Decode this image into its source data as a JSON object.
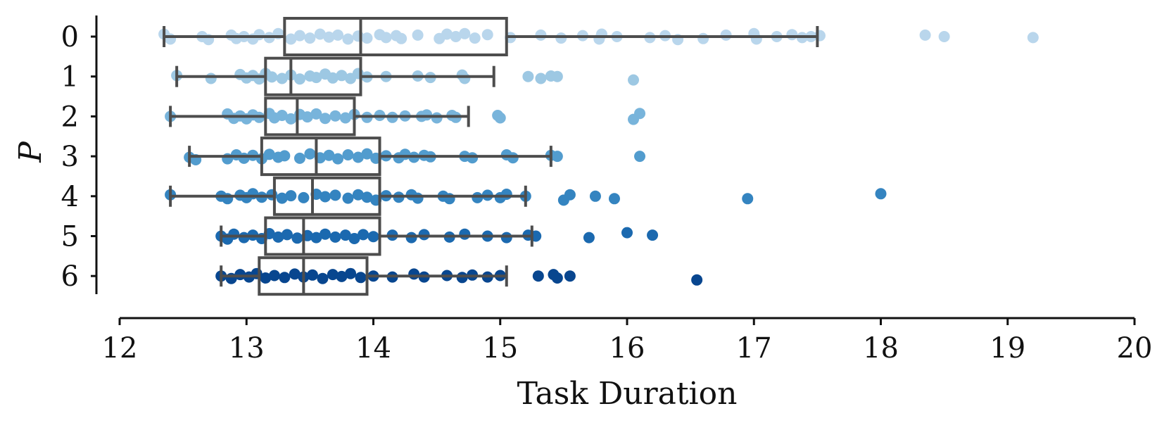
{
  "chart_data": {
    "type": "box-strip",
    "xlabel": "Task Duration",
    "ylabel": "P",
    "xlim": [
      12,
      20
    ],
    "xticks": [
      12,
      13,
      14,
      15,
      16,
      17,
      18,
      19,
      20
    ],
    "xtick_labels": [
      "12",
      "13",
      "14",
      "15",
      "16",
      "17",
      "18",
      "19",
      "20"
    ],
    "grid": false,
    "categories": [
      "0",
      "1",
      "2",
      "3",
      "4",
      "5",
      "6"
    ],
    "series": [
      {
        "category": "0",
        "color": "#b9d6ec",
        "box": {
          "q1": 13.3,
          "median": 13.9,
          "q3": 15.05,
          "whisker_low": 12.35,
          "whisker_high": 17.5
        },
        "points": [
          {
            "x": 12.35,
            "j": -0.05
          },
          {
            "x": 12.4,
            "j": 0.05
          },
          {
            "x": 12.65,
            "j": 0.0
          },
          {
            "x": 12.7,
            "j": 0.06
          },
          {
            "x": 12.88,
            "j": -0.03
          },
          {
            "x": 12.92,
            "j": 0.04
          },
          {
            "x": 12.98,
            "j": 0.0
          },
          {
            "x": 13.05,
            "j": 0.05
          },
          {
            "x": 13.1,
            "j": -0.04
          },
          {
            "x": 13.18,
            "j": 0.02
          },
          {
            "x": 13.25,
            "j": -0.06
          },
          {
            "x": 13.35,
            "j": 0.05
          },
          {
            "x": 13.42,
            "j": -0.02
          },
          {
            "x": 13.5,
            "j": 0.03
          },
          {
            "x": 13.58,
            "j": -0.05
          },
          {
            "x": 13.65,
            "j": 0.01
          },
          {
            "x": 13.72,
            "j": -0.03
          },
          {
            "x": 13.8,
            "j": 0.05
          },
          {
            "x": 13.88,
            "j": -0.01
          },
          {
            "x": 13.95,
            "j": 0.03
          },
          {
            "x": 14.05,
            "j": -0.04
          },
          {
            "x": 14.1,
            "j": 0.02
          },
          {
            "x": 14.18,
            "j": -0.02
          },
          {
            "x": 14.22,
            "j": 0.04
          },
          {
            "x": 14.35,
            "j": -0.03
          },
          {
            "x": 14.52,
            "j": 0.04
          },
          {
            "x": 14.58,
            "j": -0.05
          },
          {
            "x": 14.65,
            "j": 0.0
          },
          {
            "x": 14.72,
            "j": -0.06
          },
          {
            "x": 14.8,
            "j": 0.03
          },
          {
            "x": 14.9,
            "j": -0.04
          },
          {
            "x": 15.08,
            "j": 0.02
          },
          {
            "x": 15.32,
            "j": -0.03
          },
          {
            "x": 15.48,
            "j": 0.03
          },
          {
            "x": 15.65,
            "j": -0.02
          },
          {
            "x": 15.78,
            "j": 0.05
          },
          {
            "x": 15.8,
            "j": -0.05
          },
          {
            "x": 15.92,
            "j": 0.0
          },
          {
            "x": 16.18,
            "j": 0.02
          },
          {
            "x": 16.3,
            "j": -0.02
          },
          {
            "x": 16.4,
            "j": 0.06
          },
          {
            "x": 16.6,
            "j": 0.04
          },
          {
            "x": 16.78,
            "j": -0.03
          },
          {
            "x": 17.0,
            "j": -0.06
          },
          {
            "x": 17.02,
            "j": 0.05
          },
          {
            "x": 17.18,
            "j": 0.0
          },
          {
            "x": 17.3,
            "j": -0.04
          },
          {
            "x": 17.38,
            "j": 0.02
          },
          {
            "x": 17.45,
            "j": 0.0
          },
          {
            "x": 17.52,
            "j": -0.02
          },
          {
            "x": 18.35,
            "j": -0.03
          },
          {
            "x": 18.5,
            "j": 0.0
          },
          {
            "x": 19.2,
            "j": 0.02
          }
        ]
      },
      {
        "category": "1",
        "color": "#9dc8e3",
        "box": {
          "q1": 13.15,
          "median": 13.35,
          "q3": 13.9,
          "whisker_low": 12.45,
          "whisker_high": 14.95
        },
        "points": [
          {
            "x": 12.45,
            "j": -0.02
          },
          {
            "x": 12.72,
            "j": 0.04
          },
          {
            "x": 12.95,
            "j": -0.04
          },
          {
            "x": 13.0,
            "j": 0.03
          },
          {
            "x": 13.05,
            "j": -0.02
          },
          {
            "x": 13.1,
            "j": 0.05
          },
          {
            "x": 13.15,
            "j": -0.06
          },
          {
            "x": 13.2,
            "j": 0.01
          },
          {
            "x": 13.28,
            "j": 0.04
          },
          {
            "x": 13.35,
            "j": -0.03
          },
          {
            "x": 13.42,
            "j": 0.05
          },
          {
            "x": 13.5,
            "j": -0.01
          },
          {
            "x": 13.55,
            "j": 0.02
          },
          {
            "x": 13.62,
            "j": -0.05
          },
          {
            "x": 13.68,
            "j": 0.03
          },
          {
            "x": 13.75,
            "j": -0.02
          },
          {
            "x": 13.82,
            "j": 0.04
          },
          {
            "x": 13.88,
            "j": -0.06
          },
          {
            "x": 13.95,
            "j": 0.01
          },
          {
            "x": 14.1,
            "j": 0.0
          },
          {
            "x": 14.35,
            "j": -0.01
          },
          {
            "x": 14.45,
            "j": 0.02
          },
          {
            "x": 14.7,
            "j": -0.03
          },
          {
            "x": 14.72,
            "j": 0.04
          },
          {
            "x": 15.22,
            "j": 0.0
          },
          {
            "x": 15.32,
            "j": 0.04
          },
          {
            "x": 15.4,
            "j": -0.01
          },
          {
            "x": 15.45,
            "j": 0.0
          },
          {
            "x": 16.05,
            "j": 0.07
          }
        ]
      },
      {
        "category": "2",
        "color": "#78b4db",
        "box": {
          "q1": 13.15,
          "median": 13.4,
          "q3": 13.85,
          "whisker_low": 12.4,
          "whisker_high": 14.75
        },
        "points": [
          {
            "x": 12.4,
            "j": 0.0
          },
          {
            "x": 12.85,
            "j": -0.05
          },
          {
            "x": 12.9,
            "j": 0.04
          },
          {
            "x": 12.95,
            "j": -0.01
          },
          {
            "x": 13.0,
            "j": 0.05
          },
          {
            "x": 13.05,
            "j": -0.03
          },
          {
            "x": 13.1,
            "j": 0.02
          },
          {
            "x": 13.18,
            "j": -0.06
          },
          {
            "x": 13.22,
            "j": 0.03
          },
          {
            "x": 13.28,
            "j": -0.02
          },
          {
            "x": 13.35,
            "j": 0.05
          },
          {
            "x": 13.42,
            "j": -0.04
          },
          {
            "x": 13.48,
            "j": 0.01
          },
          {
            "x": 13.55,
            "j": -0.05
          },
          {
            "x": 13.62,
            "j": 0.04
          },
          {
            "x": 13.7,
            "j": -0.01
          },
          {
            "x": 13.78,
            "j": 0.03
          },
          {
            "x": 13.85,
            "j": -0.04
          },
          {
            "x": 13.95,
            "j": 0.02
          },
          {
            "x": 14.05,
            "j": -0.02
          },
          {
            "x": 14.15,
            "j": 0.02
          },
          {
            "x": 14.25,
            "j": -0.01
          },
          {
            "x": 14.38,
            "j": 0.0
          },
          {
            "x": 14.42,
            "j": -0.03
          },
          {
            "x": 14.5,
            "j": 0.03
          },
          {
            "x": 14.62,
            "j": -0.02
          },
          {
            "x": 14.65,
            "j": 0.02
          },
          {
            "x": 14.98,
            "j": -0.02
          },
          {
            "x": 15.0,
            "j": 0.03
          },
          {
            "x": 16.05,
            "j": 0.06
          },
          {
            "x": 16.1,
            "j": -0.06
          }
        ]
      },
      {
        "category": "3",
        "color": "#529cce",
        "box": {
          "q1": 13.12,
          "median": 13.55,
          "q3": 14.05,
          "whisker_low": 12.55,
          "whisker_high": 15.4
        },
        "points": [
          {
            "x": 12.55,
            "j": 0.02
          },
          {
            "x": 12.6,
            "j": 0.07
          },
          {
            "x": 12.85,
            "j": 0.05
          },
          {
            "x": 12.92,
            "j": -0.03
          },
          {
            "x": 12.98,
            "j": 0.04
          },
          {
            "x": 13.05,
            "j": -0.02
          },
          {
            "x": 13.12,
            "j": 0.05
          },
          {
            "x": 13.18,
            "j": -0.04
          },
          {
            "x": 13.25,
            "j": 0.02
          },
          {
            "x": 13.3,
            "j": -0.01
          },
          {
            "x": 13.42,
            "j": 0.04
          },
          {
            "x": 13.5,
            "j": -0.05
          },
          {
            "x": 13.58,
            "j": 0.03
          },
          {
            "x": 13.65,
            "j": -0.02
          },
          {
            "x": 13.72,
            "j": 0.05
          },
          {
            "x": 13.8,
            "j": -0.03
          },
          {
            "x": 13.88,
            "j": 0.02
          },
          {
            "x": 13.95,
            "j": -0.05
          },
          {
            "x": 14.02,
            "j": 0.04
          },
          {
            "x": 14.1,
            "j": -0.01
          },
          {
            "x": 14.2,
            "j": 0.03
          },
          {
            "x": 14.25,
            "j": -0.04
          },
          {
            "x": 14.32,
            "j": 0.02
          },
          {
            "x": 14.4,
            "j": -0.02
          },
          {
            "x": 14.45,
            "j": 0.01
          },
          {
            "x": 14.72,
            "j": 0.0
          },
          {
            "x": 14.78,
            "j": 0.03
          },
          {
            "x": 15.05,
            "j": -0.03
          },
          {
            "x": 15.1,
            "j": 0.03
          },
          {
            "x": 15.4,
            "j": -0.02
          },
          {
            "x": 15.45,
            "j": 0.0
          },
          {
            "x": 16.1,
            "j": 0.0
          }
        ]
      },
      {
        "category": "4",
        "color": "#3484c0",
        "box": {
          "q1": 13.22,
          "median": 13.52,
          "q3": 14.05,
          "whisker_low": 12.4,
          "whisker_high": 15.2
        },
        "points": [
          {
            "x": 12.4,
            "j": -0.03
          },
          {
            "x": 12.8,
            "j": 0.0
          },
          {
            "x": 12.85,
            "j": 0.05
          },
          {
            "x": 12.95,
            "j": -0.02
          },
          {
            "x": 13.0,
            "j": 0.03
          },
          {
            "x": 13.05,
            "j": -0.05
          },
          {
            "x": 13.12,
            "j": 0.02
          },
          {
            "x": 13.2,
            "j": -0.03
          },
          {
            "x": 13.28,
            "j": 0.04
          },
          {
            "x": 13.35,
            "j": -0.01
          },
          {
            "x": 13.45,
            "j": 0.03
          },
          {
            "x": 13.55,
            "j": -0.04
          },
          {
            "x": 13.62,
            "j": 0.01
          },
          {
            "x": 13.7,
            "j": -0.02
          },
          {
            "x": 13.8,
            "j": 0.04
          },
          {
            "x": 13.88,
            "j": -0.03
          },
          {
            "x": 13.95,
            "j": 0.02
          },
          {
            "x": 14.02,
            "j": 0.08
          },
          {
            "x": 14.1,
            "j": -0.01
          },
          {
            "x": 14.2,
            "j": 0.02
          },
          {
            "x": 14.3,
            "j": -0.03
          },
          {
            "x": 14.35,
            "j": 0.04
          },
          {
            "x": 14.55,
            "j": 0.0
          },
          {
            "x": 14.6,
            "j": 0.05
          },
          {
            "x": 14.82,
            "j": 0.03
          },
          {
            "x": 14.9,
            "j": -0.02
          },
          {
            "x": 15.0,
            "j": 0.03
          },
          {
            "x": 15.05,
            "j": -0.04
          },
          {
            "x": 15.2,
            "j": 0.0
          },
          {
            "x": 15.5,
            "j": 0.08
          },
          {
            "x": 15.55,
            "j": -0.03
          },
          {
            "x": 15.75,
            "j": 0.0
          },
          {
            "x": 15.9,
            "j": 0.05
          },
          {
            "x": 16.95,
            "j": 0.05
          },
          {
            "x": 18.0,
            "j": -0.05
          }
        ]
      },
      {
        "category": "5",
        "color": "#1b69af",
        "box": {
          "q1": 13.15,
          "median": 13.45,
          "q3": 14.05,
          "whisker_low": 12.8,
          "whisker_high": 15.25
        },
        "points": [
          {
            "x": 12.8,
            "j": 0.0
          },
          {
            "x": 12.85,
            "j": 0.06
          },
          {
            "x": 12.9,
            "j": -0.04
          },
          {
            "x": 12.98,
            "j": 0.03
          },
          {
            "x": 13.05,
            "j": -0.02
          },
          {
            "x": 13.12,
            "j": 0.05
          },
          {
            "x": 13.18,
            "j": -0.05
          },
          {
            "x": 13.25,
            "j": 0.02
          },
          {
            "x": 13.32,
            "j": -0.03
          },
          {
            "x": 13.4,
            "j": 0.04
          },
          {
            "x": 13.48,
            "j": -0.01
          },
          {
            "x": 13.55,
            "j": 0.03
          },
          {
            "x": 13.62,
            "j": -0.04
          },
          {
            "x": 13.7,
            "j": 0.02
          },
          {
            "x": 13.78,
            "j": -0.02
          },
          {
            "x": 13.85,
            "j": 0.05
          },
          {
            "x": 13.92,
            "j": -0.03
          },
          {
            "x": 14.0,
            "j": 0.01
          },
          {
            "x": 14.15,
            "j": -0.02
          },
          {
            "x": 14.3,
            "j": 0.03
          },
          {
            "x": 14.4,
            "j": -0.03
          },
          {
            "x": 14.6,
            "j": 0.02
          },
          {
            "x": 14.72,
            "j": -0.04
          },
          {
            "x": 14.9,
            "j": 0.0
          },
          {
            "x": 15.05,
            "j": 0.03
          },
          {
            "x": 15.22,
            "j": -0.02
          },
          {
            "x": 15.28,
            "j": 0.0
          },
          {
            "x": 15.7,
            "j": 0.03
          },
          {
            "x": 16.0,
            "j": -0.07
          },
          {
            "x": 16.2,
            "j": -0.02
          }
        ]
      },
      {
        "category": "6",
        "color": "#08468f",
        "box": {
          "q1": 13.1,
          "median": 13.45,
          "q3": 13.95,
          "whisker_low": 12.8,
          "whisker_high": 15.05
        },
        "points": [
          {
            "x": 12.8,
            "j": 0.0
          },
          {
            "x": 12.88,
            "j": 0.05
          },
          {
            "x": 12.95,
            "j": -0.03
          },
          {
            "x": 13.02,
            "j": 0.02
          },
          {
            "x": 13.08,
            "j": -0.05
          },
          {
            "x": 13.15,
            "j": 0.04
          },
          {
            "x": 13.22,
            "j": -0.01
          },
          {
            "x": 13.3,
            "j": 0.03
          },
          {
            "x": 13.38,
            "j": -0.04
          },
          {
            "x": 13.45,
            "j": 0.02
          },
          {
            "x": 13.52,
            "j": -0.02
          },
          {
            "x": 13.6,
            "j": 0.05
          },
          {
            "x": 13.68,
            "j": -0.03
          },
          {
            "x": 13.75,
            "j": 0.01
          },
          {
            "x": 13.82,
            "j": -0.05
          },
          {
            "x": 13.9,
            "j": 0.03
          },
          {
            "x": 14.0,
            "j": 0.0
          },
          {
            "x": 14.15,
            "j": 0.02
          },
          {
            "x": 14.32,
            "j": -0.04
          },
          {
            "x": 14.4,
            "j": 0.02
          },
          {
            "x": 14.58,
            "j": -0.01
          },
          {
            "x": 14.7,
            "j": 0.03
          },
          {
            "x": 14.78,
            "j": -0.02
          },
          {
            "x": 14.9,
            "j": 0.02
          },
          {
            "x": 15.0,
            "j": -0.01
          },
          {
            "x": 15.3,
            "j": 0.0
          },
          {
            "x": 15.42,
            "j": -0.03
          },
          {
            "x": 15.45,
            "j": 0.04
          },
          {
            "x": 15.55,
            "j": 0.0
          },
          {
            "x": 16.55,
            "j": 0.08
          }
        ]
      }
    ]
  }
}
